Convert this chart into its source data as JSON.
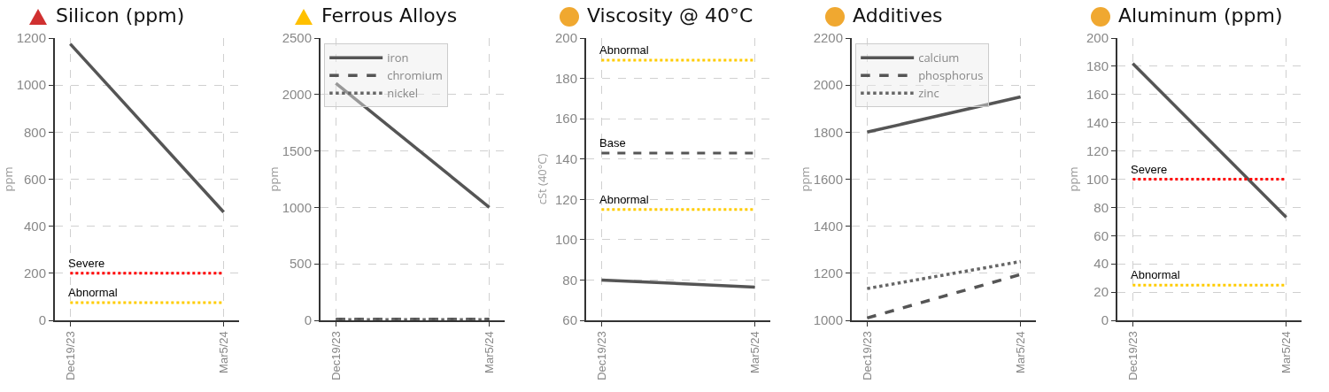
{
  "chart_data": [
    {
      "type": "line",
      "title": "Silicon (ppm)",
      "ylabel": "ppm",
      "categories": [
        "Dec19/23",
        "Mar5/24"
      ],
      "series": [
        {
          "color": "#555555",
          "values": [
            1175,
            460
          ]
        }
      ],
      "ylim": [
        0,
        1200
      ],
      "yticks": [
        0,
        200,
        400,
        600,
        800,
        1000,
        1200
      ],
      "grid": true,
      "marker": "none",
      "line_style": "solid",
      "ref_lines": [
        {
          "axis": "y",
          "value": 200,
          "label": "Severe",
          "color": "#ff0000",
          "line_style": "dotted"
        },
        {
          "axis": "y",
          "value": 75,
          "label": "Abnormal",
          "color": "#ffcc00",
          "line_style": "dotted"
        }
      ]
    },
    {
      "type": "line",
      "title": "Ferrous Alloys",
      "ylabel": "ppm",
      "categories": [
        "Dec19/23",
        "Mar5/24"
      ],
      "series": [
        {
          "name": "iron",
          "color": "#555555",
          "values": [
            2100,
            1000
          ],
          "line_style": "solid"
        },
        {
          "name": "chromium",
          "color": "#555555",
          "values": [
            10,
            10
          ],
          "line_style": "dashed"
        },
        {
          "name": "nickel",
          "color": "#666666",
          "values": [
            5,
            5
          ],
          "line_style": "dotted"
        }
      ],
      "ylim": [
        0,
        2500
      ],
      "yticks": [
        0,
        500,
        1000,
        1500,
        2000,
        2500
      ],
      "grid": true,
      "marker": "none",
      "legend": "top left"
    },
    {
      "type": "line",
      "title": "Viscosity @ 40°C",
      "ylabel": "cSt (40°C)",
      "categories": [
        "Dec19/23",
        "Mar5/24"
      ],
      "series": [
        {
          "color": "#555555",
          "values": [
            80,
            76.5
          ]
        }
      ],
      "ylim": [
        60,
        200
      ],
      "yticks": [
        60,
        80,
        100,
        120,
        140,
        160,
        180,
        200
      ],
      "grid": true,
      "marker": "none",
      "line_style": "solid",
      "ref_lines": [
        {
          "axis": "y",
          "value": 189,
          "label": "Abnormal",
          "color": "#ffcc00",
          "line_style": "dotted"
        },
        {
          "axis": "y",
          "value": 143,
          "label": "Base",
          "color": "#555555",
          "line_style": "dashed"
        },
        {
          "axis": "y",
          "value": 115,
          "label": "Abnormal",
          "color": "#ffcc00",
          "line_style": "dotted"
        }
      ]
    },
    {
      "type": "line",
      "title": "Additives",
      "ylabel": "ppm",
      "categories": [
        "Dec19/23",
        "Mar5/24"
      ],
      "series": [
        {
          "name": "calcium",
          "color": "#555555",
          "values": [
            1800,
            1950
          ],
          "line_style": "solid"
        },
        {
          "name": "phosphorus",
          "color": "#555555",
          "values": [
            1010,
            1195
          ],
          "line_style": "dashed"
        },
        {
          "name": "zinc",
          "color": "#666666",
          "values": [
            1135,
            1250
          ],
          "line_style": "dotted"
        }
      ],
      "ylim": [
        1000,
        2200
      ],
      "yticks": [
        1000,
        1200,
        1400,
        1600,
        1800,
        2000,
        2200
      ],
      "grid": true,
      "marker": "none",
      "legend": "top left"
    },
    {
      "type": "line",
      "title": "Aluminum (ppm)",
      "ylabel": "ppm",
      "categories": [
        "Dec19/23",
        "Mar5/24"
      ],
      "series": [
        {
          "color": "#555555",
          "values": [
            182,
            73
          ]
        }
      ],
      "ylim": [
        0,
        200
      ],
      "yticks": [
        0,
        20,
        40,
        60,
        80,
        100,
        120,
        140,
        160,
        180,
        200
      ],
      "grid": true,
      "marker": "none",
      "line_style": "solid",
      "ref_lines": [
        {
          "axis": "y",
          "value": 100,
          "label": "Severe",
          "color": "#ff0000",
          "line_style": "dotted"
        },
        {
          "axis": "y",
          "value": 25,
          "label": "Abnormal",
          "color": "#ffcc00",
          "line_style": "dotted"
        }
      ]
    }
  ]
}
